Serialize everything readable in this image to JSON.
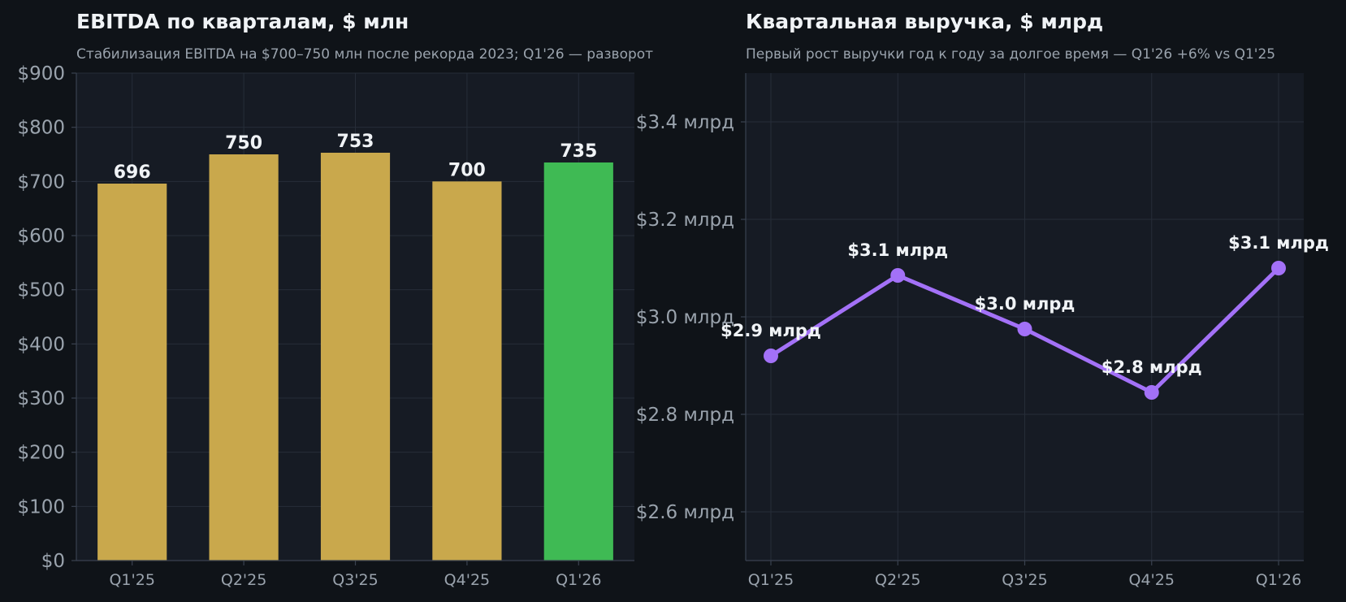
{
  "chart_data": [
    {
      "type": "bar",
      "title": "EBITDA по кварталам, $ млн",
      "subtitle": "Стабилизация EBITDA на $700–750 млн после рекорда 2023; Q1'26 — разворот",
      "categories": [
        "Q1'25",
        "Q2'25",
        "Q3'25",
        "Q4'25",
        "Q1'26"
      ],
      "values": [
        696,
        750,
        753,
        700,
        735
      ],
      "value_labels": [
        "696",
        "750",
        "753",
        "700",
        "735"
      ],
      "ylim": [
        0,
        900
      ],
      "yticks": [
        0,
        100,
        200,
        300,
        400,
        500,
        600,
        700,
        800,
        900
      ],
      "ytick_labels": [
        "$0",
        "$100",
        "$200",
        "$300",
        "$400",
        "$500",
        "$600",
        "$700",
        "$800",
        "$900"
      ],
      "grid": true,
      "colors": {
        "default": "#c9a84c",
        "highlight": "#3fba54"
      },
      "highlight_index": 4
    },
    {
      "type": "line",
      "title": "Квартальная выручка, $ млрд",
      "subtitle": "Первый рост выручки год к году за долгое время — Q1'26 +6% vs Q1'25",
      "categories": [
        "Q1'25",
        "Q2'25",
        "Q3'25",
        "Q4'25",
        "Q1'26"
      ],
      "values": [
        2.92,
        3.085,
        2.975,
        2.845,
        3.1
      ],
      "value_labels": [
        "$2.9 млрд",
        "$3.1 млрд",
        "$3.0 млрд",
        "$2.8 млрд",
        "$3.1 млрд"
      ],
      "ylim": [
        2.5,
        3.5
      ],
      "yticks": [
        2.6,
        2.8,
        3.0,
        3.2,
        3.4
      ],
      "ytick_labels": [
        "$2.6 млрд",
        "$2.8 млрд",
        "$3.0 млрд",
        "$3.2 млрд",
        "$3.4 млрд"
      ],
      "grid": true,
      "colors": {
        "line": "#a371f7"
      }
    }
  ]
}
